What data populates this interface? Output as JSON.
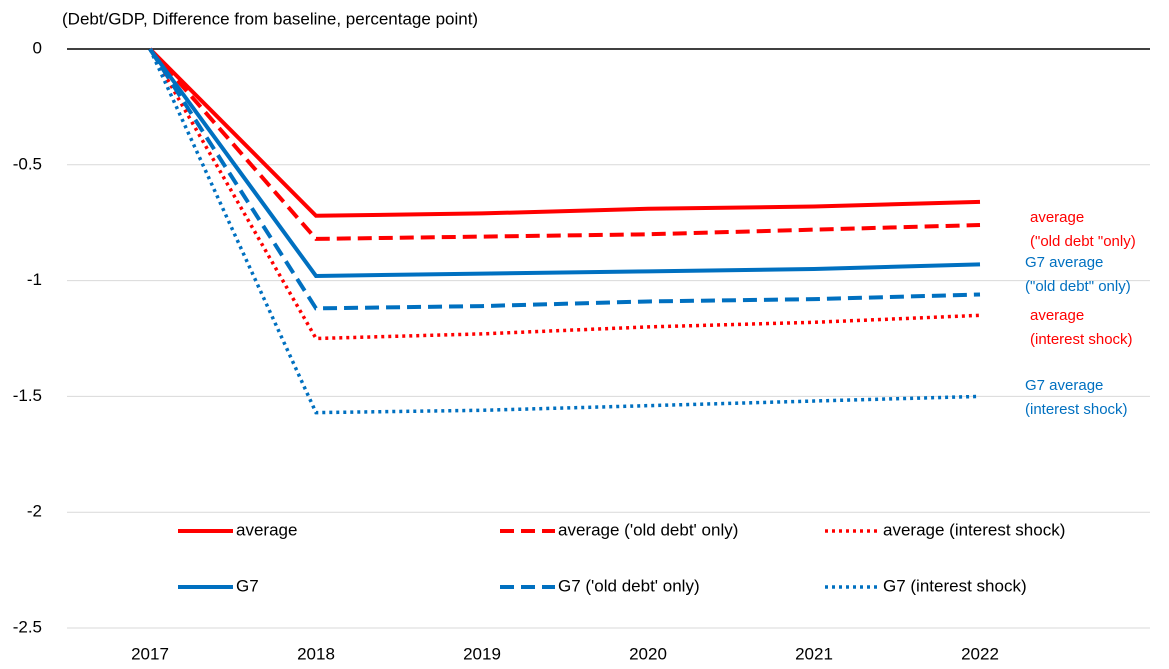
{
  "chart_data": {
    "type": "line",
    "y_label": "(Debt/GDP, Difference from baseline, percentage point)",
    "categories": [
      "2017",
      "2018",
      "2019",
      "2020",
      "2021",
      "2022"
    ],
    "series": [
      {
        "name": "average",
        "color": "#ff0000",
        "dash": "solid",
        "values": [
          0,
          -0.72,
          -0.71,
          -0.69,
          -0.68,
          -0.66
        ]
      },
      {
        "name": "average ('old debt' only)",
        "color": "#ff0000",
        "dash": "dashed",
        "values": [
          0,
          -0.82,
          -0.81,
          -0.8,
          -0.78,
          -0.76
        ]
      },
      {
        "name": "average (interest shock)",
        "color": "#ff0000",
        "dash": "dotted",
        "values": [
          0,
          -1.25,
          -1.23,
          -1.2,
          -1.18,
          -1.15
        ]
      },
      {
        "name": "G7",
        "color": "#0070c0",
        "dash": "solid",
        "values": [
          0,
          -0.98,
          -0.97,
          -0.96,
          -0.95,
          -0.93
        ]
      },
      {
        "name": "G7 ('old debt' only)",
        "color": "#0070c0",
        "dash": "dashed",
        "values": [
          0,
          -1.12,
          -1.11,
          -1.09,
          -1.08,
          -1.06
        ]
      },
      {
        "name": "G7 (interest shock)",
        "color": "#0070c0",
        "dash": "dotted",
        "values": [
          0,
          -1.57,
          -1.56,
          -1.54,
          -1.52,
          -1.5
        ]
      }
    ],
    "annotations": [
      {
        "lines": [
          "average",
          "(\"old debt \"only)"
        ],
        "color": "#ff0000"
      },
      {
        "lines": [
          "G7 average",
          "(\"old debt\" only)"
        ],
        "color": "#0070c0"
      },
      {
        "lines": [
          "average",
          "(interest shock)"
        ],
        "color": "#ff0000"
      },
      {
        "lines": [
          "G7 average",
          "(interest shock)"
        ],
        "color": "#0070c0"
      }
    ],
    "ylim": [
      -2.5,
      0
    ],
    "yticks": [
      0,
      -0.5,
      -1,
      -1.5,
      -2,
      -2.5
    ],
    "grid": true,
    "legend": "bottom"
  }
}
